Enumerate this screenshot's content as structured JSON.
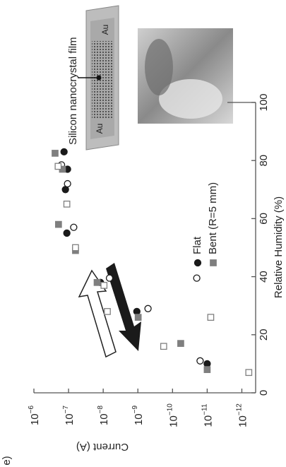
{
  "panel_label": "e)",
  "annotations": {
    "film": "Silicon nanocrystal film",
    "electrode_top": "Au",
    "electrode_bottom": "Au"
  },
  "chart_data": {
    "type": "scatter",
    "xlabel": "Relative Humidity (%)",
    "ylabel": "Current (A)",
    "xlim": [
      0,
      100
    ],
    "xticks": [
      0,
      20,
      40,
      60,
      80,
      100
    ],
    "ylim": [
      1e-06,
      4e-13
    ],
    "ylog": true,
    "yticks": [
      {
        "value": 1e-06,
        "label": "10",
        "exp": "−6"
      },
      {
        "value": 1e-07,
        "label": "10",
        "exp": "−7"
      },
      {
        "value": 1e-08,
        "label": "10",
        "exp": "−8"
      },
      {
        "value": 1e-09,
        "label": "10",
        "exp": "−9"
      },
      {
        "value": 1e-10,
        "label": "10",
        "exp": "−10"
      },
      {
        "value": 1e-11,
        "label": "10",
        "exp": "−11"
      },
      {
        "value": 1e-12,
        "label": "10",
        "exp": "−12"
      }
    ],
    "series": [
      {
        "name": "Flat",
        "marker": "circle",
        "filled": true,
        "color": "#1a1a1a",
        "x": [
          10,
          28,
          38,
          55,
          70,
          77,
          83
        ],
        "values": [
          1e-11,
          1.07e-09,
          1.2e-08,
          1.12e-07,
          1.23e-07,
          1.07e-07,
          1.35e-07
        ]
      },
      {
        "marker": "circle",
        "filled": false,
        "color": "#1a1a1a",
        "x": [
          11,
          29,
          39.5,
          39.5,
          57,
          72,
          78.5
        ],
        "values": [
          1.6e-11,
          5.1e-10,
          2e-11,
          6.6e-09,
          7.1e-08,
          1.07e-07,
          1.6e-07
        ]
      },
      {
        "name": "Bent (R=5 mm)",
        "marker": "square",
        "filled": true,
        "color": "#7f7f7f",
        "x": [
          8,
          17,
          26,
          38,
          49,
          58,
          77,
          82.5
        ],
        "values": [
          1e-11,
          5.8e-11,
          9.8e-10,
          1.5e-08,
          6.3e-08,
          1.95e-07,
          1.5e-07,
          2.45e-07
        ]
      },
      {
        "marker": "square",
        "filled": false,
        "color": "#7f7f7f",
        "x": [
          7,
          16,
          26,
          28,
          37,
          50,
          65,
          78
        ],
        "values": [
          6.3e-13,
          1.8e-10,
          7.9e-12,
          7.6e-09,
          9.5e-09,
          6.3e-08,
          1.12e-07,
          2e-07
        ]
      }
    ]
  }
}
